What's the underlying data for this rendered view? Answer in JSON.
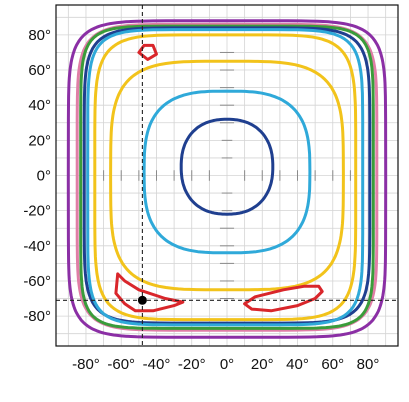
{
  "chart_data": {
    "type": "contour",
    "title": "",
    "xlabel": "",
    "ylabel": "",
    "xlim": [
      -97,
      97
    ],
    "ylim": [
      -97,
      97
    ],
    "x_ticks": [
      -80,
      -60,
      -40,
      -20,
      0,
      20,
      40,
      60,
      80
    ],
    "y_ticks": [
      80,
      60,
      40,
      20,
      0,
      -20,
      -40,
      -60,
      -80
    ],
    "x_tick_labels": [
      "-80°",
      "-60°",
      "-40°",
      "-20°",
      "0°",
      "20°",
      "40°",
      "60°",
      "80°"
    ],
    "y_tick_labels": [
      "80°",
      "60°",
      "40°",
      "20°",
      "0°",
      "-20°",
      "-40°",
      "-60°",
      "-80°"
    ],
    "grid": true,
    "contours": [
      {
        "color": "#8b2fa5",
        "shape": "squircle",
        "center": [
          0,
          -2
        ],
        "half_width": [
          90,
          90
        ],
        "exponent": 7
      },
      {
        "color": "#e07ea6",
        "shape": "squircle",
        "center": [
          0,
          -1
        ],
        "half_width": [
          85,
          87
        ],
        "exponent": 7
      },
      {
        "color": "#3a9c3a",
        "shape": "squircle",
        "center": [
          0,
          -1
        ],
        "half_width": [
          83,
          86
        ],
        "exponent": 8
      },
      {
        "color": "#1f3f8f",
        "shape": "squircle",
        "center": [
          0,
          0
        ],
        "half_width": [
          81,
          84
        ],
        "exponent": 7
      },
      {
        "color": "#2fa9d9",
        "shape": "squircle",
        "center": [
          -1,
          -1
        ],
        "half_width": [
          78,
          84
        ],
        "exponent": 7
      },
      {
        "color": "#f2c31b",
        "shape": "squircle",
        "center": [
          -1,
          -1
        ],
        "half_width": [
          74,
          81
        ],
        "exponent": 6
      },
      {
        "color": "#f2c31b",
        "shape": "squircle",
        "center": [
          0,
          0
        ],
        "half_width": [
          66,
          65
        ],
        "exponent": 4
      },
      {
        "color": "#2fa9d9",
        "shape": "squircle",
        "center": [
          0,
          2
        ],
        "half_width": [
          47,
          46
        ],
        "exponent": 3
      },
      {
        "color": "#1f3f8f",
        "shape": "squircle",
        "center": [
          0,
          5
        ],
        "half_width": [
          26,
          27
        ],
        "exponent": 2.3
      }
    ],
    "regions": [
      {
        "color": "#d9262b",
        "points": [
          [
            -50,
            70
          ],
          [
            -47,
            74
          ],
          [
            -42,
            74
          ],
          [
            -40,
            69
          ],
          [
            -45,
            66
          ]
        ]
      },
      {
        "color": "#d9262b",
        "points": [
          [
            -62,
            -56
          ],
          [
            -58,
            -60
          ],
          [
            -50,
            -65
          ],
          [
            -35,
            -70
          ],
          [
            -25,
            -72
          ],
          [
            -30,
            -74
          ],
          [
            -42,
            -77
          ],
          [
            -52,
            -77
          ],
          [
            -58,
            -73
          ],
          [
            -63,
            -67
          ]
        ]
      },
      {
        "color": "#d9262b",
        "points": [
          [
            10,
            -73
          ],
          [
            16,
            -69
          ],
          [
            32,
            -65
          ],
          [
            44,
            -63
          ],
          [
            52,
            -63
          ],
          [
            54,
            -66
          ],
          [
            50,
            -70
          ],
          [
            40,
            -74
          ],
          [
            25,
            -77
          ],
          [
            14,
            -76
          ]
        ]
      }
    ],
    "crosshair": {
      "x": -48,
      "y": -71
    },
    "marker": {
      "x": -48,
      "y": -71,
      "color": "#000000"
    }
  }
}
